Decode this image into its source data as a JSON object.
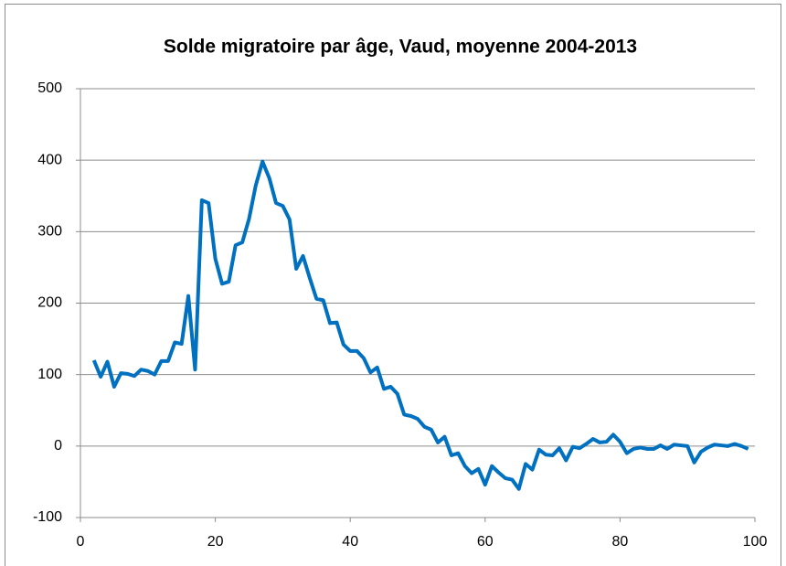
{
  "chart_data": {
    "type": "line",
    "title": "Solde migratoire par âge, Vaud, moyenne 2004-2013",
    "x": [
      2,
      3,
      4,
      5,
      6,
      7,
      8,
      9,
      10,
      11,
      12,
      13,
      14,
      15,
      16,
      17,
      18,
      19,
      20,
      21,
      22,
      23,
      24,
      25,
      26,
      27,
      28,
      29,
      30,
      31,
      32,
      33,
      34,
      35,
      36,
      37,
      38,
      39,
      40,
      41,
      42,
      43,
      44,
      45,
      46,
      47,
      48,
      49,
      50,
      51,
      52,
      53,
      54,
      55,
      56,
      57,
      58,
      59,
      60,
      61,
      62,
      63,
      64,
      65,
      66,
      67,
      68,
      69,
      70,
      71,
      72,
      73,
      74,
      75,
      76,
      77,
      78,
      79,
      80,
      81,
      82,
      83,
      84,
      85,
      86,
      87,
      88,
      89,
      90,
      91,
      92,
      93,
      94,
      95,
      96,
      97,
      98,
      99
    ],
    "series": [
      {
        "name": "Solde migratoire",
        "color": "#0070c0",
        "values": [
          120,
          97,
          118,
          83,
          102,
          101,
          98,
          107,
          105,
          100,
          119,
          119,
          145,
          143,
          210,
          107,
          344,
          340,
          262,
          227,
          230,
          281,
          285,
          318,
          365,
          398,
          375,
          340,
          336,
          317,
          248,
          266,
          235,
          206,
          204,
          172,
          173,
          142,
          133,
          133,
          123,
          103,
          110,
          80,
          83,
          73,
          44,
          42,
          38,
          27,
          23,
          5,
          13,
          -13,
          -10,
          -28,
          -38,
          -32,
          -54,
          -28,
          -37,
          -45,
          -47,
          -60,
          -25,
          -33,
          -5,
          -12,
          -13,
          -3,
          -20,
          -1,
          -3,
          3,
          10,
          5,
          6,
          16,
          6,
          -10,
          -4,
          -2,
          -4,
          -4,
          1,
          -4,
          2,
          1,
          0,
          -23,
          -8,
          -2,
          2,
          1,
          0,
          3,
          0,
          -4
        ]
      }
    ],
    "xlim": [
      0,
      100
    ],
    "xticks": [
      0,
      20,
      40,
      60,
      80,
      100
    ],
    "ylim": [
      -100,
      500
    ],
    "yticks": [
      -100,
      0,
      100,
      200,
      300,
      400,
      500
    ],
    "grid": true
  }
}
